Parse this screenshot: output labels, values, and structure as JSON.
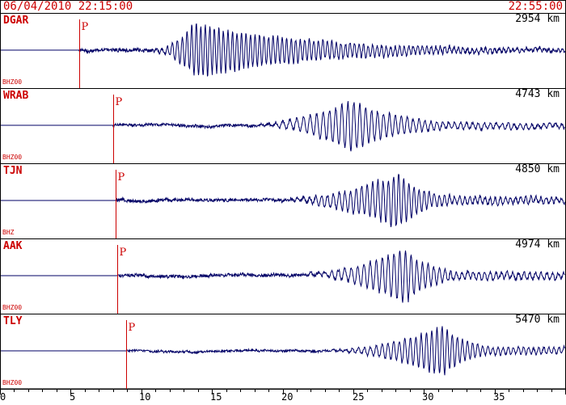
{
  "header": {
    "start_time": "06/04/2010 22:15:00",
    "end_time": "22:55:00"
  },
  "colors": {
    "trace": "#000066",
    "marker": "#cc0000",
    "label": "#cc0000",
    "border": "#000000"
  },
  "chart_data": {
    "type": "line",
    "title": "",
    "xlabel": "",
    "x_ticks": [
      0,
      5,
      10,
      15,
      20,
      25,
      30,
      35
    ],
    "xlim": [
      0,
      40
    ],
    "x_unit": "minutes",
    "traces": [
      {
        "station": "DGAR",
        "distance": "2954 km",
        "channel": "BHZ00",
        "phase": "P",
        "p_arrival": 5.6,
        "noise": 0.06,
        "wave_start": 10.2,
        "wave_peak": 13.8,
        "wave_end": 29,
        "peak_amp": 0.85,
        "period": 0.32
      },
      {
        "station": "WRAB",
        "distance": "4743 km",
        "channel": "BHZ00",
        "phase": "P",
        "p_arrival": 8.0,
        "noise": 0.05,
        "wave_start": 17,
        "wave_peak": 24.8,
        "wave_end": 31,
        "peak_amp": 0.8,
        "period": 0.42
      },
      {
        "station": "TJN",
        "distance": "4850 km",
        "channel": "BHZ",
        "phase": "P",
        "p_arrival": 8.2,
        "noise": 0.06,
        "wave_start": 18,
        "wave_peak": 28.2,
        "wave_end": 31.5,
        "peak_amp": 0.85,
        "period": 0.36
      },
      {
        "station": "AAK",
        "distance": "4974 km",
        "channel": "BHZ00",
        "phase": "P",
        "p_arrival": 8.3,
        "noise": 0.06,
        "wave_start": 20,
        "wave_peak": 28.6,
        "wave_end": 32,
        "peak_amp": 0.85,
        "period": 0.4
      },
      {
        "station": "TLY",
        "distance": "5470 km",
        "channel": "BHZ00",
        "phase": "P",
        "p_arrival": 8.9,
        "noise": 0.04,
        "wave_start": 22,
        "wave_peak": 31.3,
        "wave_end": 34.5,
        "peak_amp": 0.8,
        "period": 0.36
      }
    ]
  }
}
